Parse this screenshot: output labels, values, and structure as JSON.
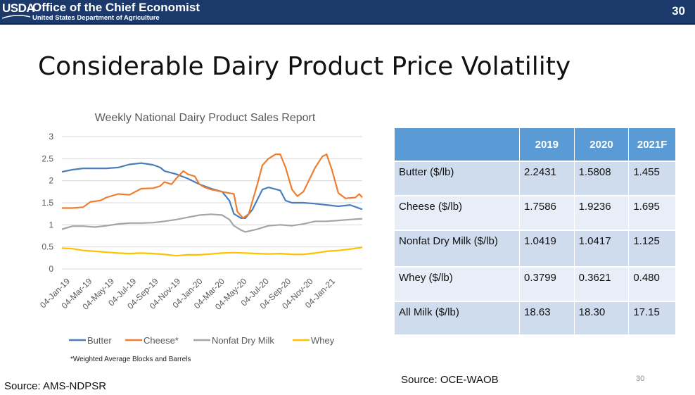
{
  "header": {
    "logo_text": "USDA",
    "org_title": "Office of the Chief Economist",
    "org_subtitle": "United States Department of Agriculture",
    "page_badge": "30",
    "bar_color": "#1b3a6b"
  },
  "slide": {
    "title": "Considerable Dairy Product Price Volatility",
    "footnote": "*Weighted Average Blocks and Barrels",
    "source_left": "Source: AMS-NDPSR",
    "source_right": "Source: OCE-WAOB",
    "page_number": "30"
  },
  "table": {
    "header": [
      "",
      "2019",
      "2020",
      "2021F"
    ],
    "rows": [
      {
        "label": "Butter ($/lb)",
        "v2019": "2.2431",
        "v2020": "1.5808",
        "v2021": "1.455"
      },
      {
        "label": "Cheese ($/lb)",
        "v2019": "1.7586",
        "v2020": "1.9236",
        "v2021": "1.695"
      },
      {
        "label": "Nonfat Dry Milk ($/lb)",
        "v2019": "1.0419",
        "v2020": "1.0417",
        "v2021": "1.125"
      },
      {
        "label": "Whey ($/lb)",
        "v2019": "0.3799",
        "v2020": "0.3621",
        "v2021": "0.480"
      },
      {
        "label": "All Milk ($/lb)",
        "v2019": "18.63",
        "v2020": "18.30",
        "v2021": "17.15"
      }
    ],
    "header_color": "#5b9bd5"
  },
  "chart_data": {
    "type": "line",
    "title": "Weekly National Dairy Product Sales Report",
    "xlabel": "",
    "ylabel": "",
    "ylim": [
      0,
      3
    ],
    "yticks": [
      "0",
      "0.5",
      "1",
      "1.5",
      "2",
      "2.5",
      "3"
    ],
    "x_tick_labels": [
      "04-Jan-19",
      "04-Mar-19",
      "04-May-19",
      "04-Jul-19",
      "04-Sep-19",
      "04-Nov-19",
      "04-Jan-20",
      "04-Mar-20",
      "04-May-20",
      "04-Jul-20",
      "04-Sep-20",
      "04-Nov-20",
      "04-Jan-21"
    ],
    "x_range": [
      "2019-01-04",
      "2021-03-05"
    ],
    "grid": true,
    "legend_position": "bottom",
    "series": [
      {
        "name": "Butter",
        "color": "#4a7ebb",
        "points": [
          [
            "2019-01-04",
            2.2
          ],
          [
            "2019-02-01",
            2.25
          ],
          [
            "2019-03-01",
            2.28
          ],
          [
            "2019-04-01",
            2.28
          ],
          [
            "2019-05-01",
            2.28
          ],
          [
            "2019-06-01",
            2.3
          ],
          [
            "2019-07-01",
            2.37
          ],
          [
            "2019-08-01",
            2.4
          ],
          [
            "2019-09-01",
            2.36
          ],
          [
            "2019-09-20",
            2.3
          ],
          [
            "2019-10-01",
            2.22
          ],
          [
            "2019-11-01",
            2.15
          ],
          [
            "2019-12-01",
            2.05
          ],
          [
            "2020-01-01",
            1.92
          ],
          [
            "2020-02-01",
            1.82
          ],
          [
            "2020-03-01",
            1.75
          ],
          [
            "2020-03-20",
            1.55
          ],
          [
            "2020-04-01",
            1.25
          ],
          [
            "2020-04-20",
            1.15
          ],
          [
            "2020-05-01",
            1.15
          ],
          [
            "2020-05-20",
            1.35
          ],
          [
            "2020-06-15",
            1.8
          ],
          [
            "2020-07-01",
            1.85
          ],
          [
            "2020-08-01",
            1.78
          ],
          [
            "2020-08-15",
            1.55
          ],
          [
            "2020-09-01",
            1.5
          ],
          [
            "2020-10-01",
            1.5
          ],
          [
            "2020-11-01",
            1.48
          ],
          [
            "2020-12-01",
            1.45
          ],
          [
            "2021-01-01",
            1.42
          ],
          [
            "2021-02-01",
            1.45
          ],
          [
            "2021-03-05",
            1.35
          ]
        ]
      },
      {
        "name": "Cheese*",
        "color": "#ed7d31",
        "points": [
          [
            "2019-01-04",
            1.38
          ],
          [
            "2019-02-01",
            1.38
          ],
          [
            "2019-03-01",
            1.4
          ],
          [
            "2019-03-20",
            1.52
          ],
          [
            "2019-04-15",
            1.55
          ],
          [
            "2019-05-01",
            1.62
          ],
          [
            "2019-06-01",
            1.7
          ],
          [
            "2019-07-01",
            1.68
          ],
          [
            "2019-08-01",
            1.82
          ],
          [
            "2019-09-01",
            1.83
          ],
          [
            "2019-09-20",
            1.88
          ],
          [
            "2019-10-01",
            1.97
          ],
          [
            "2019-10-20",
            1.92
          ],
          [
            "2019-11-01",
            2.05
          ],
          [
            "2019-11-20",
            2.22
          ],
          [
            "2019-12-01",
            2.15
          ],
          [
            "2019-12-20",
            2.1
          ],
          [
            "2020-01-01",
            1.92
          ],
          [
            "2020-01-15",
            1.85
          ],
          [
            "2020-02-01",
            1.8
          ],
          [
            "2020-03-01",
            1.75
          ],
          [
            "2020-04-01",
            1.7
          ],
          [
            "2020-04-10",
            1.3
          ],
          [
            "2020-04-25",
            1.15
          ],
          [
            "2020-05-10",
            1.25
          ],
          [
            "2020-06-01",
            1.9
          ],
          [
            "2020-06-15",
            2.35
          ],
          [
            "2020-07-01",
            2.5
          ],
          [
            "2020-07-20",
            2.6
          ],
          [
            "2020-08-01",
            2.6
          ],
          [
            "2020-08-15",
            2.3
          ],
          [
            "2020-09-01",
            1.8
          ],
          [
            "2020-09-15",
            1.65
          ],
          [
            "2020-10-01",
            1.75
          ],
          [
            "2020-10-15",
            2.0
          ],
          [
            "2020-11-01",
            2.3
          ],
          [
            "2020-11-20",
            2.55
          ],
          [
            "2020-12-01",
            2.6
          ],
          [
            "2020-12-15",
            2.25
          ],
          [
            "2021-01-01",
            1.72
          ],
          [
            "2021-01-20",
            1.6
          ],
          [
            "2021-02-15",
            1.62
          ],
          [
            "2021-02-25",
            1.7
          ],
          [
            "2021-03-05",
            1.62
          ]
        ]
      },
      {
        "name": "Nonfat Dry Milk",
        "color": "#a5a5a5",
        "points": [
          [
            "2019-01-04",
            0.9
          ],
          [
            "2019-02-01",
            0.97
          ],
          [
            "2019-03-01",
            0.97
          ],
          [
            "2019-04-01",
            0.95
          ],
          [
            "2019-05-01",
            0.98
          ],
          [
            "2019-06-01",
            1.02
          ],
          [
            "2019-07-01",
            1.04
          ],
          [
            "2019-08-01",
            1.04
          ],
          [
            "2019-09-01",
            1.05
          ],
          [
            "2019-10-01",
            1.08
          ],
          [
            "2019-11-01",
            1.12
          ],
          [
            "2019-12-01",
            1.17
          ],
          [
            "2020-01-01",
            1.22
          ],
          [
            "2020-02-01",
            1.24
          ],
          [
            "2020-03-01",
            1.22
          ],
          [
            "2020-03-20",
            1.12
          ],
          [
            "2020-04-01",
            0.98
          ],
          [
            "2020-04-20",
            0.88
          ],
          [
            "2020-05-01",
            0.84
          ],
          [
            "2020-06-01",
            0.9
          ],
          [
            "2020-07-01",
            0.98
          ],
          [
            "2020-08-01",
            1.0
          ],
          [
            "2020-09-01",
            0.98
          ],
          [
            "2020-10-01",
            1.02
          ],
          [
            "2020-11-01",
            1.08
          ],
          [
            "2020-12-01",
            1.08
          ],
          [
            "2021-01-01",
            1.1
          ],
          [
            "2021-02-01",
            1.12
          ],
          [
            "2021-03-05",
            1.14
          ]
        ]
      },
      {
        "name": "Whey",
        "color": "#ffc000",
        "points": [
          [
            "2019-01-04",
            0.47
          ],
          [
            "2019-02-01",
            0.46
          ],
          [
            "2019-03-01",
            0.42
          ],
          [
            "2019-04-01",
            0.4
          ],
          [
            "2019-05-01",
            0.38
          ],
          [
            "2019-06-01",
            0.36
          ],
          [
            "2019-07-01",
            0.35
          ],
          [
            "2019-08-01",
            0.36
          ],
          [
            "2019-09-01",
            0.35
          ],
          [
            "2019-10-01",
            0.33
          ],
          [
            "2019-11-01",
            0.3
          ],
          [
            "2019-12-01",
            0.32
          ],
          [
            "2020-01-01",
            0.32
          ],
          [
            "2020-02-01",
            0.34
          ],
          [
            "2020-03-01",
            0.36
          ],
          [
            "2020-04-01",
            0.37
          ],
          [
            "2020-05-01",
            0.36
          ],
          [
            "2020-06-01",
            0.35
          ],
          [
            "2020-07-01",
            0.34
          ],
          [
            "2020-08-01",
            0.35
          ],
          [
            "2020-09-01",
            0.33
          ],
          [
            "2020-10-01",
            0.33
          ],
          [
            "2020-11-01",
            0.36
          ],
          [
            "2020-12-01",
            0.4
          ],
          [
            "2021-01-01",
            0.42
          ],
          [
            "2021-02-01",
            0.45
          ],
          [
            "2021-03-05",
            0.49
          ]
        ]
      }
    ]
  }
}
